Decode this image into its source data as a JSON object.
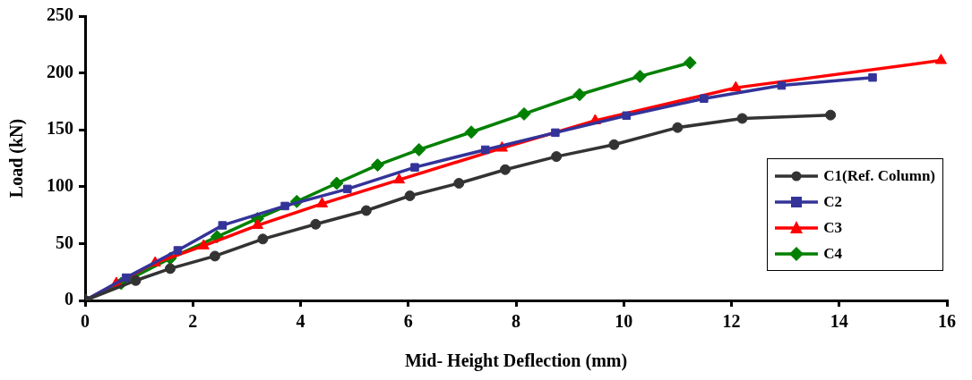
{
  "chart_data": {
    "type": "line",
    "xlabel": "Mid- Height Deflection (mm)",
    "ylabel": "Load (kN)",
    "xlim": [
      0,
      16
    ],
    "xticks": [
      0,
      2,
      4,
      6,
      8,
      10,
      12,
      14,
      16
    ],
    "ylim": [
      0,
      250
    ],
    "yticks": [
      0,
      50,
      100,
      150,
      200,
      250
    ],
    "grid": false,
    "legend": "right",
    "line_style": "solid",
    "series": [
      {
        "name": "C1(Ref. Column)",
        "color": "#333333",
        "marker": "circle",
        "x": [
          0,
          0.94,
          1.58,
          2.41,
          3.3,
          4.28,
          5.22,
          6.03,
          6.94,
          7.8,
          8.75,
          9.82,
          11.0,
          12.2,
          13.84
        ],
        "values": [
          0,
          17.5,
          28,
          39,
          54,
          67,
          79,
          92,
          103,
          115,
          126.5,
          137,
          152,
          160,
          163
        ]
      },
      {
        "name": "C2",
        "color": "#333399",
        "marker": "square",
        "x": [
          0,
          0.76,
          1.72,
          2.55,
          3.71,
          4.87,
          6.12,
          7.43,
          8.73,
          10.05,
          11.49,
          12.93,
          14.62
        ],
        "values": [
          0,
          20,
          44,
          66,
          83,
          98,
          117,
          132.5,
          147.5,
          162.5,
          177.5,
          189,
          196
        ]
      },
      {
        "name": "C3",
        "color": "#ff0000",
        "marker": "triangle",
        "x": [
          0,
          0.58,
          1.3,
          2.2,
          3.2,
          4.4,
          5.83,
          7.74,
          9.47,
          12.08,
          15.89
        ],
        "values": [
          0,
          15,
          33,
          48,
          66,
          85,
          106,
          134,
          158,
          187,
          211
        ]
      },
      {
        "name": "C4",
        "color": "#008000",
        "marker": "diamond",
        "x": [
          0,
          0.67,
          1.58,
          2.45,
          3.2,
          3.93,
          4.67,
          5.43,
          6.2,
          7.17,
          8.15,
          9.18,
          10.3,
          11.23
        ],
        "values": [
          0,
          15,
          37,
          56,
          72,
          87,
          103,
          119,
          132.5,
          148,
          164,
          181,
          197,
          209
        ]
      }
    ]
  }
}
